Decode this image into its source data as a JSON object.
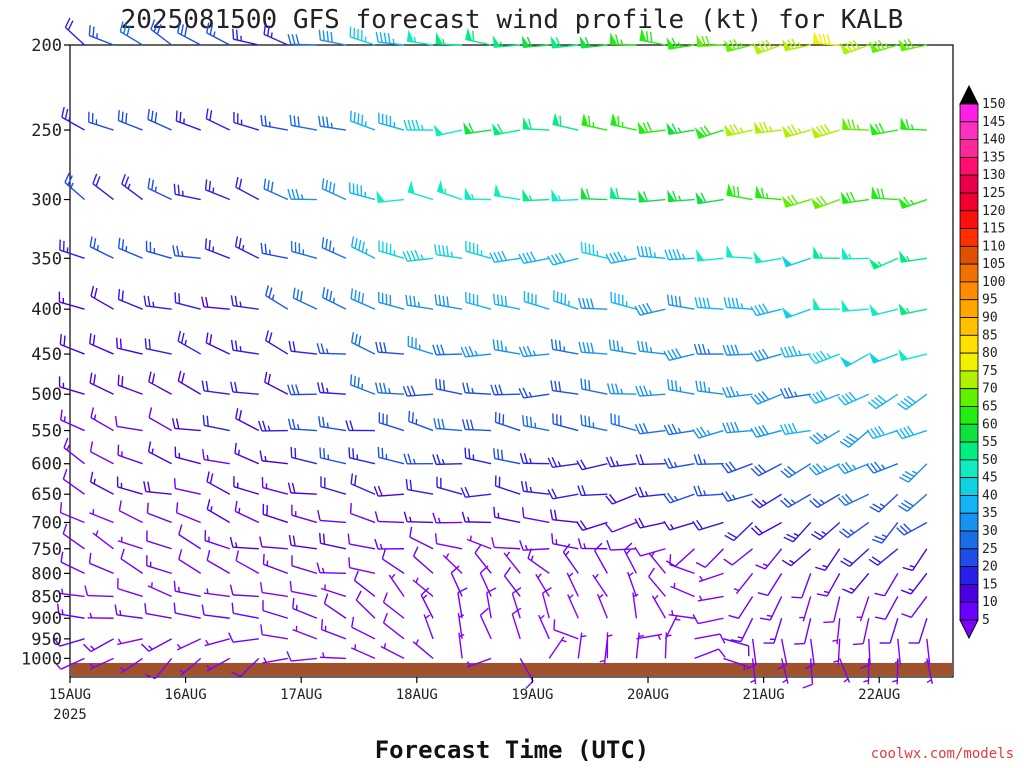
{
  "chart_data": {
    "type": "wind-barb-profile",
    "title": "2025081500 GFS forecast wind profile (kt) for KALB",
    "xlabel": "Forecast Time (UTC)",
    "credit": "coolwx.com/models",
    "y_axis": {
      "label": "",
      "scale": "log-pressure-inverted",
      "ticks": [
        200,
        250,
        300,
        350,
        400,
        450,
        500,
        550,
        600,
        650,
        700,
        750,
        800,
        850,
        900,
        950,
        1000
      ],
      "range": [
        1050,
        200
      ]
    },
    "x_axis": {
      "ticks": [
        "15AUG",
        "16AUG",
        "17AUG",
        "18AUG",
        "19AUG",
        "20AUG",
        "21AUG",
        "22AUG"
      ],
      "year_label": "2025",
      "range_days": [
        0,
        7.6
      ]
    },
    "colorbar": {
      "unit": "kt",
      "levels": [
        5,
        10,
        15,
        20,
        25,
        30,
        35,
        40,
        45,
        50,
        55,
        60,
        65,
        70,
        75,
        80,
        85,
        90,
        95,
        100,
        105,
        110,
        115,
        120,
        125,
        130,
        135,
        140,
        145,
        150
      ],
      "colors": [
        "#8000ff",
        "#6a00ff",
        "#4b00e0",
        "#2a1fe8",
        "#1f4de8",
        "#1a6fe8",
        "#1894f0",
        "#14b3f5",
        "#10d2e0",
        "#10ebc2",
        "#00ee80",
        "#10e040",
        "#20ee10",
        "#60f000",
        "#b0f000",
        "#f0f000",
        "#ffe000",
        "#ffc000",
        "#ffa500",
        "#ff8c00",
        "#f07000",
        "#e05000",
        "#ff3000",
        "#ff1010",
        "#f00030",
        "#e8004a",
        "#ff1070",
        "#ff2898",
        "#ff30c0",
        "#ff20e8"
      ]
    },
    "ground": {
      "color": "#a0522d"
    },
    "wind_levels": {
      "pressures": [
        200,
        250,
        300,
        350,
        400,
        450,
        500,
        550,
        600,
        650,
        700,
        750,
        800,
        850,
        900,
        950,
        1000
      ],
      "speed_kt_by_level_and_day": [
        [
          25,
          30,
          20,
          40,
          55,
          60,
          65,
          75,
          80,
          70
        ],
        [
          25,
          25,
          20,
          40,
          55,
          60,
          65,
          75,
          75,
          70
        ],
        [
          25,
          25,
          25,
          45,
          50,
          55,
          60,
          65,
          70,
          65
        ],
        [
          25,
          25,
          25,
          40,
          45,
          45,
          45,
          50,
          55,
          60
        ],
        [
          20,
          20,
          25,
          35,
          40,
          40,
          40,
          40,
          50,
          55
        ],
        [
          15,
          20,
          20,
          30,
          35,
          35,
          35,
          40,
          45,
          50
        ],
        [
          15,
          15,
          20,
          30,
          30,
          30,
          35,
          35,
          40,
          45
        ],
        [
          15,
          15,
          20,
          25,
          30,
          30,
          30,
          35,
          40,
          40
        ],
        [
          10,
          15,
          15,
          25,
          25,
          25,
          25,
          30,
          35,
          35
        ],
        [
          10,
          15,
          15,
          20,
          20,
          20,
          20,
          25,
          30,
          30
        ],
        [
          10,
          10,
          15,
          15,
          15,
          15,
          15,
          20,
          25,
          25
        ],
        [
          10,
          10,
          15,
          15,
          10,
          10,
          10,
          15,
          20,
          20
        ],
        [
          10,
          10,
          10,
          10,
          10,
          10,
          10,
          10,
          15,
          15
        ],
        [
          10,
          10,
          10,
          10,
          10,
          5,
          5,
          10,
          10,
          10
        ],
        [
          10,
          10,
          15,
          15,
          10,
          5,
          5,
          10,
          10,
          10
        ],
        [
          10,
          10,
          10,
          10,
          5,
          5,
          5,
          10,
          5,
          10
        ],
        [
          5,
          5,
          5,
          5,
          5,
          5,
          5,
          5,
          5,
          5
        ]
      ],
      "direction_deg_by_level_and_day": [
        [
          300,
          300,
          290,
          280,
          270,
          270,
          270,
          265,
          260,
          260
        ],
        [
          300,
          290,
          290,
          280,
          270,
          270,
          270,
          265,
          260,
          260
        ],
        [
          300,
          290,
          290,
          280,
          275,
          270,
          270,
          265,
          260,
          260
        ],
        [
          300,
          290,
          290,
          285,
          275,
          270,
          270,
          265,
          255,
          260
        ],
        [
          300,
          290,
          290,
          285,
          280,
          275,
          270,
          265,
          260,
          255
        ],
        [
          300,
          290,
          290,
          285,
          280,
          275,
          270,
          265,
          255,
          250
        ],
        [
          300,
          290,
          285,
          280,
          280,
          275,
          270,
          260,
          250,
          245
        ],
        [
          300,
          290,
          285,
          280,
          280,
          275,
          270,
          260,
          245,
          240
        ],
        [
          300,
          290,
          285,
          280,
          280,
          275,
          265,
          255,
          240,
          235
        ],
        [
          300,
          290,
          285,
          280,
          280,
          270,
          260,
          250,
          235,
          230
        ],
        [
          300,
          290,
          285,
          280,
          280,
          270,
          260,
          240,
          230,
          225
        ],
        [
          300,
          290,
          285,
          280,
          290,
          280,
          250,
          230,
          220,
          220
        ],
        [
          300,
          290,
          285,
          280,
          320,
          320,
          320,
          220,
          210,
          215
        ],
        [
          290,
          280,
          280,
          300,
          330,
          340,
          340,
          200,
          200,
          210
        ],
        [
          280,
          270,
          280,
          310,
          340,
          350,
          350,
          190,
          190,
          200
        ],
        [
          260,
          250,
          260,
          300,
          350,
          350,
          0,
          180,
          180,
          190
        ],
        [
          240,
          230,
          240,
          280,
          340,
          0,
          0,
          170,
          170,
          180
        ]
      ]
    }
  }
}
